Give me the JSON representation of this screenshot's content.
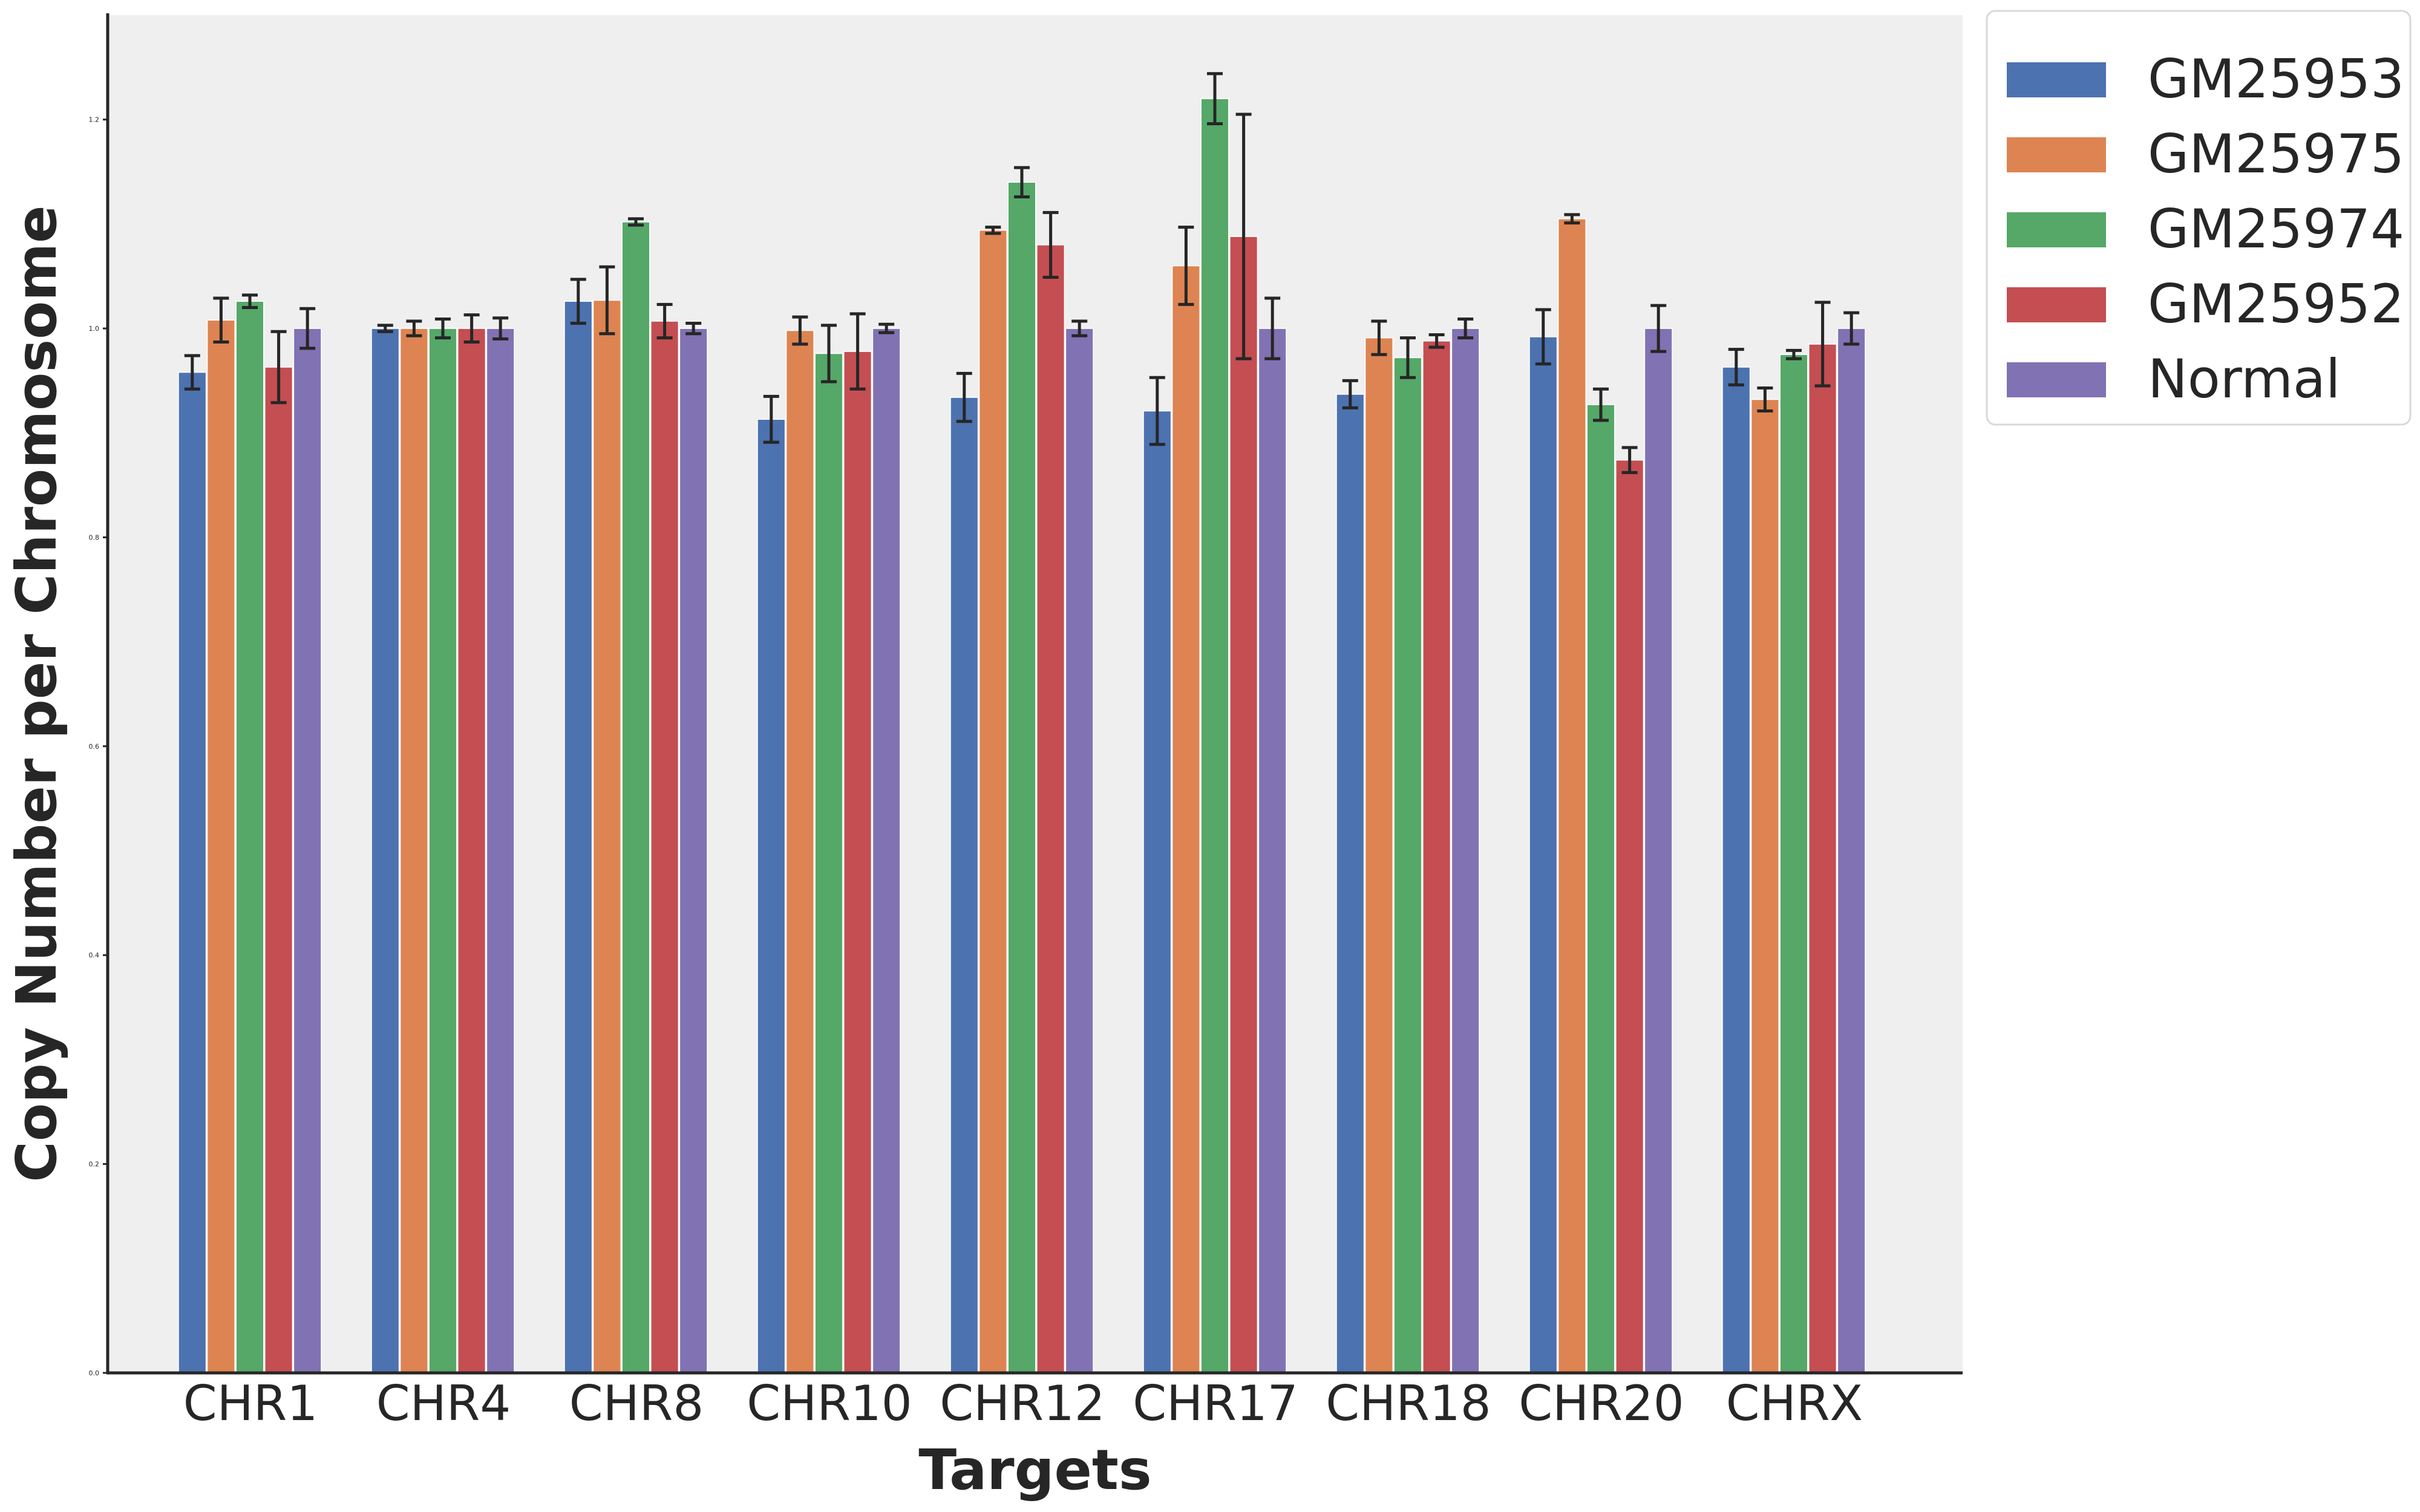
{
  "chart_data": {
    "type": "bar",
    "xlabel": "Targets",
    "ylabel": "Copy Number per Chromosome",
    "ylim": [
      0,
      1.3
    ],
    "yticks": [
      "0.0",
      "0.2",
      "0.4",
      "0.6",
      "0.8",
      "1.0",
      "1.2"
    ],
    "categories": [
      "CHR1",
      "CHR4",
      "CHR8",
      "CHR10",
      "CHR12",
      "CHR17",
      "CHR18",
      "CHR20",
      "CHRX"
    ],
    "grid": false,
    "legend_position": "outside top-right",
    "series": [
      {
        "name": "GM25953",
        "color": "#4C72B0",
        "values": [
          0.958,
          1.0,
          1.026,
          0.913,
          0.934,
          0.921,
          0.937,
          0.992,
          0.963
        ],
        "errors": [
          0.016,
          0.003,
          0.021,
          0.022,
          0.023,
          0.032,
          0.013,
          0.026,
          0.017
        ]
      },
      {
        "name": "GM25975",
        "color": "#DD8452",
        "values": [
          1.008,
          1.0,
          1.027,
          0.998,
          1.094,
          1.06,
          0.991,
          1.105,
          0.932
        ],
        "errors": [
          0.021,
          0.007,
          0.032,
          0.013,
          0.003,
          0.037,
          0.016,
          0.004,
          0.011
        ]
      },
      {
        "name": "GM25974",
        "color": "#55A868",
        "values": [
          1.026,
          1.0,
          1.102,
          0.976,
          1.14,
          1.22,
          0.972,
          0.927,
          0.975
        ],
        "errors": [
          0.006,
          0.009,
          0.003,
          0.027,
          0.014,
          0.024,
          0.019,
          0.015,
          0.004
        ]
      },
      {
        "name": "GM25952",
        "color": "#C44E52",
        "values": [
          0.963,
          1.0,
          1.007,
          0.978,
          1.08,
          1.088,
          0.988,
          0.874,
          0.985
        ],
        "errors": [
          0.034,
          0.013,
          0.016,
          0.036,
          0.031,
          0.117,
          0.006,
          0.012,
          0.04
        ]
      },
      {
        "name": "Normal",
        "color": "#8172B3",
        "values": [
          1.0,
          1.0,
          1.0,
          1.0,
          1.0,
          1.0,
          1.0,
          1.0,
          1.0
        ],
        "errors": [
          0.019,
          0.01,
          0.005,
          0.004,
          0.007,
          0.029,
          0.009,
          0.022,
          0.015
        ]
      }
    ]
  },
  "colors": {
    "plot_background": "#EFEFEF",
    "axis": "#262626",
    "error_bar": "#262626"
  }
}
